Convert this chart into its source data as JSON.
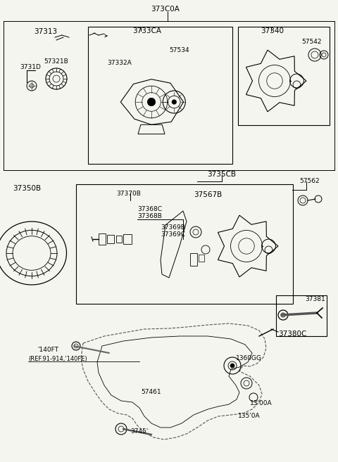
{
  "bg_color": "#f5f5f0",
  "labels": {
    "top_center": "373C0A",
    "top_center_sub": "I",
    "box1_label": "3733CA",
    "box1_part1": "37332A",
    "box1_part2": "57534",
    "box2_label": "37340",
    "box2_part1": "57542",
    "left_part1_label": "37313",
    "left_part2_label": "3731D",
    "left_part3_label": "57321B",
    "mid_label": "3735CB",
    "box3_label": "37350B",
    "box3_part1": "37370B",
    "box3_part2": "37368C",
    "box3_part3": "37368B",
    "box3_part4": "37369B",
    "box3_part5": "37369C",
    "box3_part6": "37567B",
    "right_part1": "57562",
    "right_part2": "37381",
    "right_part3": "37380C",
    "bottom_label1": "'140FT",
    "bottom_label1b": "(REF.91-914,'140FE)",
    "bottom_part1": "57461",
    "bottom_part2": "3745'",
    "bottom_part3": "1360GG",
    "bottom_part4": "13'00A",
    "bottom_part5": "135'0A"
  },
  "font_family": "DejaVu Sans",
  "main_font_size": 7.5,
  "small_font_size": 6.5
}
